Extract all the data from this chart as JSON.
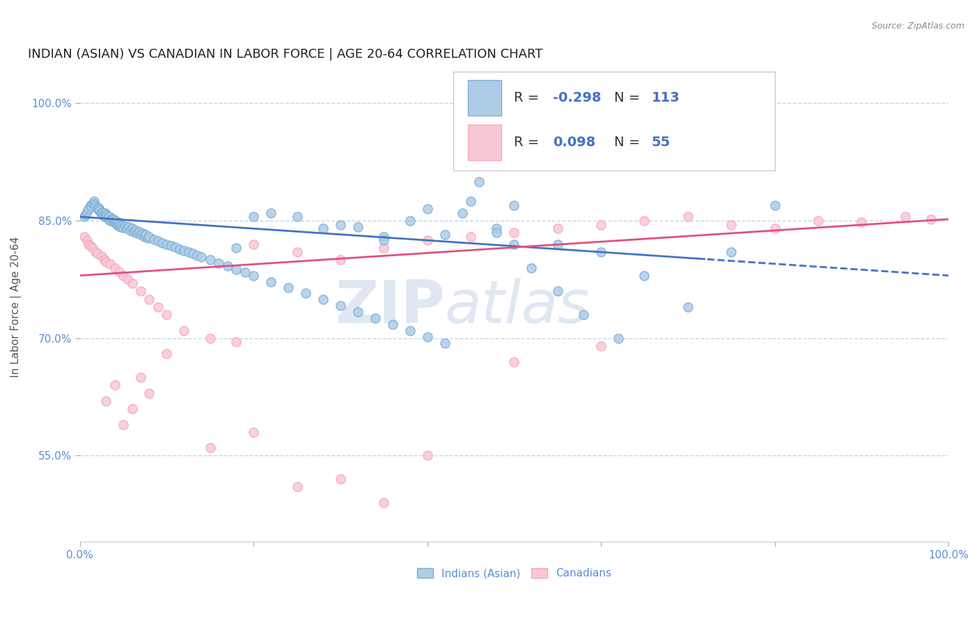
{
  "title": "INDIAN (ASIAN) VS CANADIAN IN LABOR FORCE | AGE 20-64 CORRELATION CHART",
  "source": "Source: ZipAtlas.com",
  "ylabel": "In Labor Force | Age 20-64",
  "xlim": [
    0.0,
    1.0
  ],
  "ylim": [
    0.44,
    1.04
  ],
  "ytick_positions": [
    0.55,
    0.7,
    0.85,
    1.0
  ],
  "ytick_labels": [
    "55.0%",
    "70.0%",
    "85.0%",
    "100.0%"
  ],
  "blue_color": "#7bafd4",
  "pink_color": "#f4a7b9",
  "blue_fill": "#aecce8",
  "pink_fill": "#f9c8d5",
  "trend_blue": "#4472c4",
  "trend_pink": "#e05080",
  "grid_color": "#c8d4e8",
  "R_blue": -0.298,
  "N_blue": 113,
  "R_pink": 0.098,
  "N_pink": 55,
  "legend_label_blue": "Indians (Asian)",
  "legend_label_pink": "Canadians",
  "blue_points_x": [
    0.005,
    0.007,
    0.008,
    0.01,
    0.012,
    0.013,
    0.015,
    0.016,
    0.017,
    0.018,
    0.02,
    0.021,
    0.022,
    0.023,
    0.024,
    0.025,
    0.026,
    0.027,
    0.028,
    0.029,
    0.03,
    0.031,
    0.032,
    0.033,
    0.034,
    0.035,
    0.036,
    0.037,
    0.038,
    0.039,
    0.04,
    0.041,
    0.042,
    0.043,
    0.044,
    0.045,
    0.046,
    0.047,
    0.048,
    0.05,
    0.052,
    0.054,
    0.056,
    0.058,
    0.06,
    0.062,
    0.064,
    0.066,
    0.068,
    0.07,
    0.072,
    0.074,
    0.076,
    0.078,
    0.08,
    0.085,
    0.09,
    0.095,
    0.1,
    0.105,
    0.11,
    0.115,
    0.12,
    0.125,
    0.13,
    0.135,
    0.14,
    0.15,
    0.16,
    0.17,
    0.18,
    0.19,
    0.2,
    0.22,
    0.24,
    0.26,
    0.28,
    0.3,
    0.32,
    0.34,
    0.36,
    0.38,
    0.4,
    0.42,
    0.44,
    0.46,
    0.48,
    0.5,
    0.52,
    0.55,
    0.58,
    0.62,
    0.65,
    0.7,
    0.75,
    0.8,
    0.35,
    0.25,
    0.45,
    0.55,
    0.3,
    0.2,
    0.4,
    0.6,
    0.5,
    0.35,
    0.28,
    0.22,
    0.18,
    0.48,
    0.38,
    0.32,
    0.42
  ],
  "blue_points_y": [
    0.855,
    0.858,
    0.862,
    0.865,
    0.87,
    0.868,
    0.872,
    0.875,
    0.871,
    0.869,
    0.867,
    0.864,
    0.866,
    0.863,
    0.86,
    0.858,
    0.861,
    0.857,
    0.855,
    0.86,
    0.858,
    0.856,
    0.854,
    0.852,
    0.855,
    0.85,
    0.853,
    0.851,
    0.849,
    0.852,
    0.848,
    0.85,
    0.847,
    0.845,
    0.848,
    0.843,
    0.846,
    0.842,
    0.844,
    0.841,
    0.843,
    0.84,
    0.842,
    0.838,
    0.84,
    0.836,
    0.838,
    0.834,
    0.836,
    0.832,
    0.834,
    0.83,
    0.832,
    0.828,
    0.83,
    0.826,
    0.824,
    0.822,
    0.82,
    0.818,
    0.816,
    0.814,
    0.812,
    0.81,
    0.808,
    0.806,
    0.804,
    0.8,
    0.796,
    0.792,
    0.788,
    0.784,
    0.78,
    0.772,
    0.765,
    0.758,
    0.75,
    0.742,
    0.734,
    0.726,
    0.718,
    0.71,
    0.702,
    0.694,
    0.86,
    0.9,
    0.84,
    0.82,
    0.79,
    0.76,
    0.73,
    0.7,
    0.78,
    0.74,
    0.81,
    0.87,
    0.83,
    0.855,
    0.875,
    0.82,
    0.845,
    0.855,
    0.865,
    0.81,
    0.87,
    0.825,
    0.84,
    0.86,
    0.815,
    0.835,
    0.85,
    0.842,
    0.832
  ],
  "pink_points_x": [
    0.005,
    0.008,
    0.01,
    0.012,
    0.015,
    0.018,
    0.02,
    0.025,
    0.028,
    0.03,
    0.035,
    0.04,
    0.045,
    0.05,
    0.055,
    0.06,
    0.07,
    0.08,
    0.09,
    0.1,
    0.12,
    0.15,
    0.18,
    0.2,
    0.25,
    0.3,
    0.35,
    0.4,
    0.45,
    0.5,
    0.55,
    0.6,
    0.65,
    0.7,
    0.75,
    0.8,
    0.85,
    0.9,
    0.95,
    0.98,
    0.03,
    0.04,
    0.05,
    0.06,
    0.07,
    0.08,
    0.1,
    0.15,
    0.2,
    0.25,
    0.3,
    0.35,
    0.4,
    0.5,
    0.6
  ],
  "pink_points_y": [
    0.83,
    0.825,
    0.82,
    0.818,
    0.815,
    0.81,
    0.808,
    0.805,
    0.8,
    0.798,
    0.795,
    0.79,
    0.785,
    0.78,
    0.775,
    0.77,
    0.76,
    0.75,
    0.74,
    0.73,
    0.71,
    0.7,
    0.695,
    0.82,
    0.81,
    0.8,
    0.815,
    0.825,
    0.83,
    0.835,
    0.84,
    0.845,
    0.85,
    0.855,
    0.845,
    0.84,
    0.85,
    0.848,
    0.855,
    0.852,
    0.62,
    0.64,
    0.59,
    0.61,
    0.65,
    0.63,
    0.68,
    0.56,
    0.58,
    0.51,
    0.52,
    0.49,
    0.55,
    0.67,
    0.69
  ],
  "bg_color": "#ffffff",
  "watermark_text": "ZIP",
  "watermark_text2": "atlas",
  "watermark_color1": "#c5d5e8",
  "watermark_color2": "#c5d5e8",
  "title_fontsize": 13,
  "axis_label_fontsize": 11,
  "tick_fontsize": 11,
  "trend_split_x": 0.72
}
